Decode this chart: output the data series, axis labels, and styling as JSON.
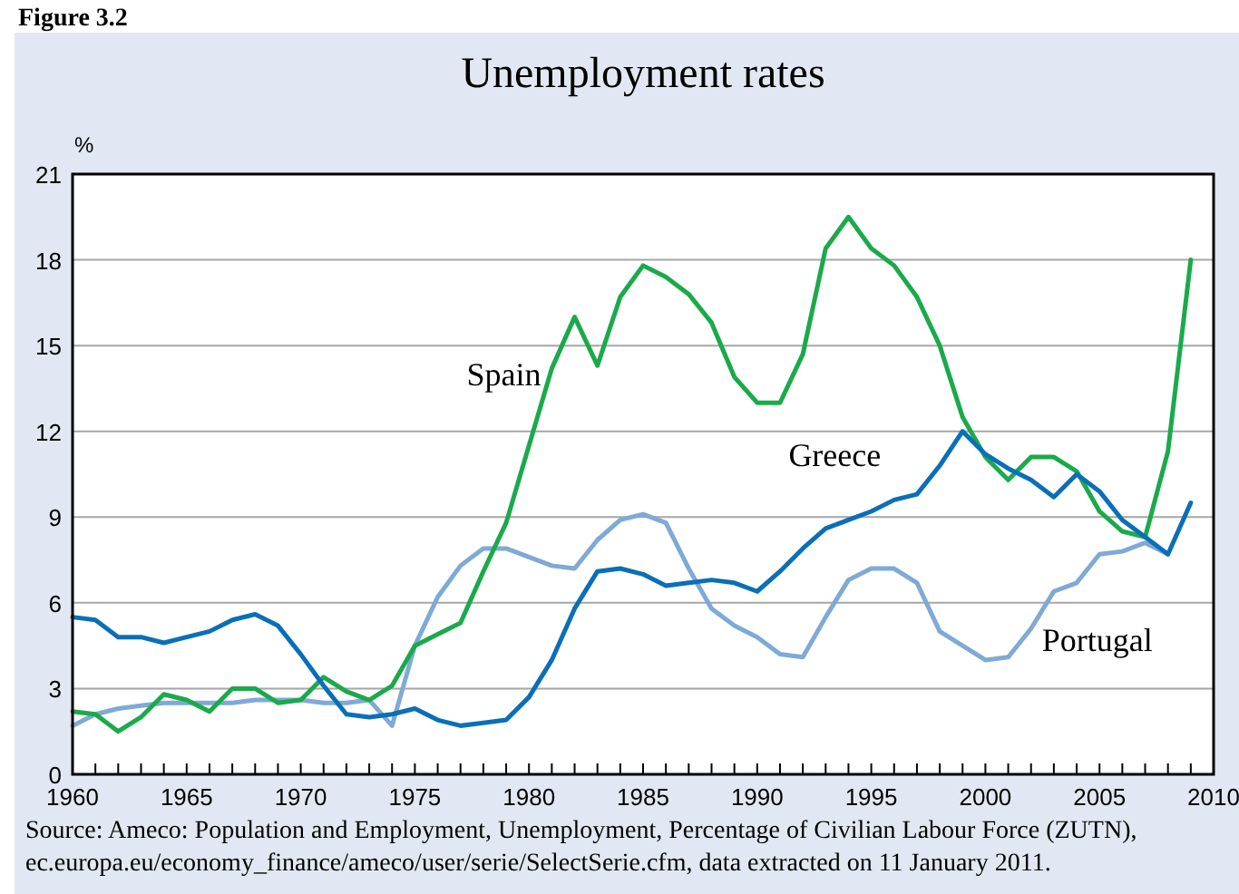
{
  "chart_data": {
    "type": "line",
    "title": "Unemployment rates",
    "ylabel": "%",
    "x": [
      1960,
      1961,
      1962,
      1963,
      1964,
      1965,
      1966,
      1967,
      1968,
      1969,
      1970,
      1971,
      1972,
      1973,
      1974,
      1975,
      1976,
      1977,
      1978,
      1979,
      1980,
      1981,
      1982,
      1983,
      1984,
      1985,
      1986,
      1987,
      1988,
      1989,
      1990,
      1991,
      1992,
      1993,
      1994,
      1995,
      1996,
      1997,
      1998,
      1999,
      2000,
      2001,
      2002,
      2003,
      2004,
      2005,
      2006,
      2007,
      2008,
      2009
    ],
    "series": [
      {
        "name": "Portugal",
        "color": "#7fa9d6",
        "values": [
          1.7,
          2.1,
          2.3,
          2.4,
          2.5,
          2.5,
          2.5,
          2.5,
          2.6,
          2.6,
          2.6,
          2.5,
          2.5,
          2.6,
          1.7,
          4.5,
          6.2,
          7.3,
          7.9,
          7.9,
          7.6,
          7.3,
          7.2,
          8.2,
          8.9,
          9.1,
          8.8,
          7.2,
          5.8,
          5.2,
          4.8,
          4.2,
          4.1,
          5.5,
          6.8,
          7.2,
          7.2,
          6.7,
          5.0,
          4.5,
          4.0,
          4.1,
          5.1,
          6.4,
          6.7,
          7.7,
          7.8,
          8.1,
          7.7,
          null
        ]
      },
      {
        "name": "Spain",
        "color": "#1aaa4a",
        "values": [
          2.2,
          2.1,
          1.5,
          2.0,
          2.8,
          2.6,
          2.2,
          3.0,
          3.0,
          2.5,
          2.6,
          3.4,
          2.9,
          2.6,
          3.1,
          4.5,
          4.9,
          5.3,
          7.1,
          8.8,
          11.5,
          14.2,
          16.0,
          14.3,
          16.7,
          17.8,
          17.4,
          16.8,
          15.8,
          13.9,
          13.0,
          13.0,
          14.7,
          18.4,
          19.5,
          18.4,
          17.8,
          16.7,
          15.0,
          12.5,
          11.1,
          10.3,
          11.1,
          11.1,
          10.6,
          9.2,
          8.5,
          8.3,
          11.3,
          18.0
        ]
      },
      {
        "name": "Greece",
        "color": "#0a6fb8",
        "values": [
          5.5,
          5.4,
          4.8,
          4.8,
          4.6,
          4.8,
          5.0,
          5.4,
          5.6,
          5.2,
          4.2,
          3.1,
          2.1,
          2.0,
          2.1,
          2.3,
          1.9,
          1.7,
          1.8,
          1.9,
          2.7,
          4.0,
          5.8,
          7.1,
          7.2,
          7.0,
          6.6,
          6.7,
          6.8,
          6.7,
          6.4,
          7.1,
          7.9,
          8.6,
          8.9,
          9.2,
          9.6,
          9.8,
          10.8,
          12.0,
          11.2,
          10.7,
          10.3,
          9.7,
          10.5,
          9.9,
          8.9,
          8.3,
          7.7,
          9.5
        ]
      }
    ],
    "xlim": [
      1960,
      2010
    ],
    "xticks": [
      1960,
      {
        "value": 1961,
        "label": null
      },
      {
        "value": 1962,
        "label": null
      },
      {
        "value": 1963,
        "label": null
      },
      {
        "value": 1964,
        "label": null
      },
      1965,
      {
        "value": 1966,
        "label": null
      },
      {
        "value": 1967,
        "label": null
      },
      {
        "value": 1968,
        "label": null
      },
      {
        "value": 1969,
        "label": null
      },
      1970,
      {
        "value": 1971,
        "label": null
      },
      {
        "value": 1972,
        "label": null
      },
      {
        "value": 1973,
        "label": null
      },
      {
        "value": 1974,
        "label": null
      },
      1975,
      {
        "value": 1976,
        "label": null
      },
      {
        "value": 1977,
        "label": null
      },
      {
        "value": 1978,
        "label": null
      },
      {
        "value": 1979,
        "label": null
      },
      1980,
      {
        "value": 1981,
        "label": null
      },
      {
        "value": 1982,
        "label": null
      },
      {
        "value": 1983,
        "label": null
      },
      {
        "value": 1984,
        "label": null
      },
      1985,
      {
        "value": 1986,
        "label": null
      },
      {
        "value": 1987,
        "label": null
      },
      {
        "value": 1988,
        "label": null
      },
      {
        "value": 1989,
        "label": null
      },
      1990,
      {
        "value": 1991,
        "label": null
      },
      {
        "value": 1992,
        "label": null
      },
      {
        "value": 1993,
        "label": null
      },
      {
        "value": 1994,
        "label": null
      },
      1995,
      {
        "value": 1996,
        "label": null
      },
      {
        "value": 1997,
        "label": null
      },
      {
        "value": 1998,
        "label": null
      },
      {
        "value": 1999,
        "label": null
      },
      2000,
      {
        "value": 2001,
        "label": null
      },
      {
        "value": 2002,
        "label": null
      },
      {
        "value": 2003,
        "label": null
      },
      {
        "value": 2004,
        "label": null
      },
      2005,
      {
        "value": 2006,
        "label": null
      },
      {
        "value": 2007,
        "label": null
      },
      {
        "value": 2008,
        "label": null
      },
      {
        "value": 2009,
        "label": null
      },
      2010
    ],
    "ylim": [
      0,
      21
    ],
    "yticks": [
      0,
      3,
      6,
      9,
      12,
      15,
      18,
      21
    ],
    "grid": "y",
    "legend": false,
    "line_style": "solid",
    "annotations": [
      "Figure 3.2",
      "Source: Ameco: Population and Employment, Unemployment, Percentage of Civilian Labour Force (ZUTN),",
      "ec.europa.eu/economy_finance/ameco/user/serie/SelectSerie.cfm, data extracted on 11 January 2011."
    ]
  }
}
